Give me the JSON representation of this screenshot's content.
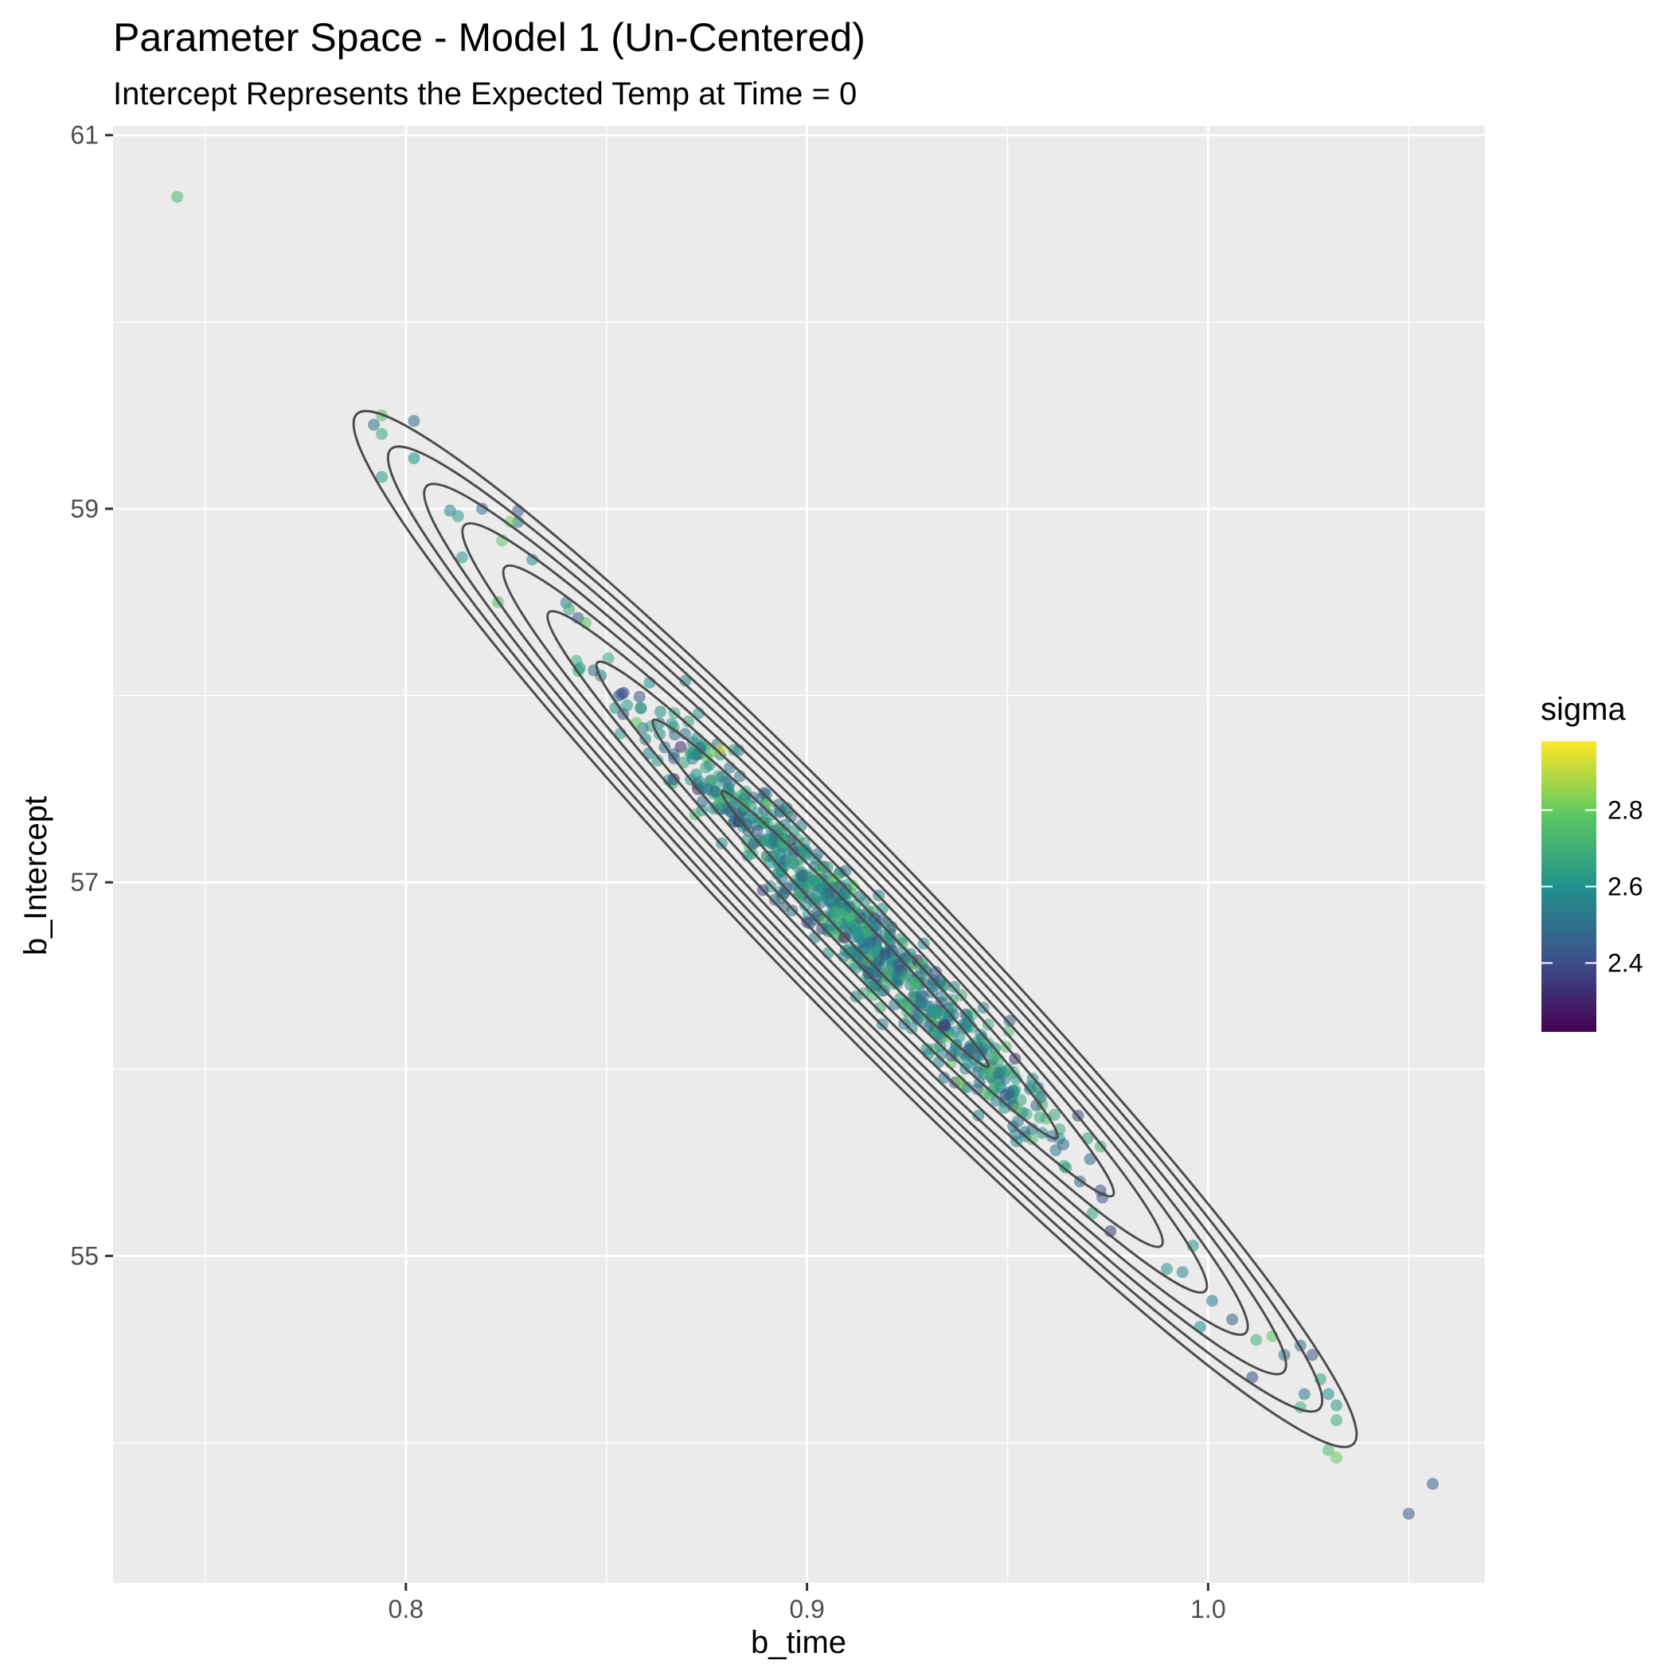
{
  "chart_data": {
    "type": "scatter",
    "title": "Parameter Space - Model 1 (Un-Centered)",
    "subtitle": "Intercept Represents the Expected Temp at Time = 0",
    "xlabel": "b_time",
    "ylabel": "b_Intercept",
    "xlim": [
      0.727,
      1.069
    ],
    "ylim": [
      53.25,
      61.05
    ],
    "x_ticks": [
      0.8,
      0.9,
      1.0
    ],
    "x_tick_labels": [
      "0.8",
      "0.9",
      "1.0"
    ],
    "y_ticks": [
      55,
      57,
      59,
      61
    ],
    "y_tick_labels": [
      "55",
      "57",
      "59",
      "61"
    ],
    "grid": true,
    "background": "#ebebeb",
    "point_alpha": 0.55,
    "legend": {
      "title": "sigma",
      "position": "right",
      "range": [
        2.22,
        2.98
      ],
      "ticks": [
        2.4,
        2.6,
        2.8
      ],
      "tick_labels": [
        "2.4",
        "2.6",
        "2.8"
      ],
      "colormap": "viridis",
      "colors": [
        "#440154",
        "#3b528b",
        "#21918c",
        "#5ec962",
        "#fde725"
      ]
    },
    "density_contours": {
      "color": "#4d4d4d",
      "center": [
        0.912,
        56.75
      ],
      "slope_dy_dx": -22.2,
      "levels": 9
    },
    "outlier_points": [
      {
        "x": 0.743,
        "y": 60.67,
        "sigma": 2.72
      },
      {
        "x": 0.792,
        "y": 59.45,
        "sigma": 2.5
      },
      {
        "x": 0.794,
        "y": 59.5,
        "sigma": 2.75
      },
      {
        "x": 0.794,
        "y": 59.4,
        "sigma": 2.68
      },
      {
        "x": 0.802,
        "y": 59.47,
        "sigma": 2.48
      },
      {
        "x": 0.802,
        "y": 59.27,
        "sigma": 2.6
      },
      {
        "x": 0.794,
        "y": 59.17,
        "sigma": 2.63
      },
      {
        "x": 0.811,
        "y": 58.99,
        "sigma": 2.55
      },
      {
        "x": 0.813,
        "y": 58.96,
        "sigma": 2.62
      },
      {
        "x": 0.819,
        "y": 59.0,
        "sigma": 2.5
      },
      {
        "x": 0.828,
        "y": 58.99,
        "sigma": 2.45
      },
      {
        "x": 0.828,
        "y": 58.93,
        "sigma": 2.52
      },
      {
        "x": 0.826,
        "y": 58.93,
        "sigma": 2.82
      },
      {
        "x": 0.824,
        "y": 58.83,
        "sigma": 2.78
      },
      {
        "x": 0.814,
        "y": 58.74,
        "sigma": 2.62
      },
      {
        "x": 0.823,
        "y": 58.5,
        "sigma": 2.75
      },
      {
        "x": 1.001,
        "y": 54.76,
        "sigma": 2.55
      },
      {
        "x": 0.998,
        "y": 54.62,
        "sigma": 2.6
      },
      {
        "x": 1.006,
        "y": 54.66,
        "sigma": 2.45
      },
      {
        "x": 1.012,
        "y": 54.55,
        "sigma": 2.7
      },
      {
        "x": 1.016,
        "y": 54.57,
        "sigma": 2.78
      },
      {
        "x": 1.019,
        "y": 54.47,
        "sigma": 2.5
      },
      {
        "x": 1.023,
        "y": 54.52,
        "sigma": 2.52
      },
      {
        "x": 1.024,
        "y": 54.26,
        "sigma": 2.55
      },
      {
        "x": 1.011,
        "y": 54.35,
        "sigma": 2.4
      },
      {
        "x": 1.026,
        "y": 54.47,
        "sigma": 2.42
      },
      {
        "x": 1.028,
        "y": 54.34,
        "sigma": 2.65
      },
      {
        "x": 1.023,
        "y": 54.19,
        "sigma": 2.7
      },
      {
        "x": 1.03,
        "y": 54.26,
        "sigma": 2.6
      },
      {
        "x": 1.032,
        "y": 54.2,
        "sigma": 2.63
      },
      {
        "x": 1.032,
        "y": 54.12,
        "sigma": 2.68
      },
      {
        "x": 1.03,
        "y": 53.96,
        "sigma": 2.75
      },
      {
        "x": 1.032,
        "y": 53.92,
        "sigma": 2.8
      },
      {
        "x": 1.056,
        "y": 53.78,
        "sigma": 2.45
      },
      {
        "x": 1.05,
        "y": 53.62,
        "sigma": 2.42
      }
    ],
    "cloud": {
      "n_points": 760,
      "x_range": [
        0.826,
        1.0
      ],
      "x_mean": 0.912,
      "x_sd": 0.028,
      "intercept_at_x_mean": 56.75,
      "slope_dy_dx": -22.2,
      "y_noise_sd": 0.13,
      "sigma_mean": 2.58,
      "sigma_sd": 0.1
    }
  }
}
